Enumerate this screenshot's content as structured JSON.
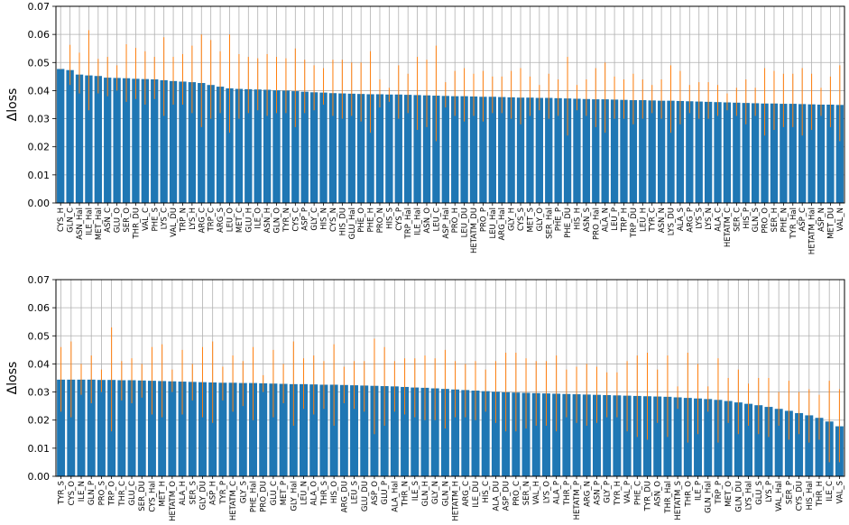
{
  "colors": {
    "bar": "#1f77b4",
    "error_bar": "#ff7f0e",
    "grid": "#b0b0b0"
  },
  "chart_data": [
    {
      "type": "bar",
      "ylabel": "Δloss",
      "xlabel": "",
      "ylim": [
        0,
        0.07
      ],
      "yticks": [
        "0.00",
        "0.01",
        "0.02",
        "0.03",
        "0.04",
        "0.05",
        "0.06",
        "0.07"
      ],
      "grid": true,
      "error_bars": true,
      "categories": [
        "CYS_H",
        "GLN_C",
        "ASN_Hal",
        "ILE_Hal",
        "MET_Hal",
        "ASN_C",
        "GLU_O",
        "SER_O",
        "THR_DU",
        "VAL_C",
        "PHE_S",
        "LYS_C",
        "VAL_DU",
        "TRP_N",
        "LYS_H",
        "ARG_C",
        "TRP_C",
        "ARG_S",
        "LEU_O",
        "MET_C",
        "GLU_H",
        "ILE_O",
        "ASN_H",
        "GLN_O",
        "TYR_N",
        "CYS_C",
        "ASP_P",
        "GLY_C",
        "HIS_N",
        "CYS_N",
        "HIS_DU",
        "GLU_Hal",
        "PHE_O",
        "PHE_H",
        "PRO_N",
        "HIS_S",
        "CYS_P",
        "TRP_Hal",
        "ILE_Hal",
        "ASN_O",
        "LEU_C",
        "ASP_Hal",
        "PRO_H",
        "LEU_DU",
        "HETATM_DU",
        "PRO_P",
        "LEU_Hal",
        "ARG_Hal",
        "GLY_H",
        "CYS_S",
        "MET_S",
        "GLY_O",
        "SER_Hal",
        "PHE_P",
        "PHE_DU",
        "HIS_H",
        "ASN_S",
        "PRO_Hal",
        "ALA_N",
        "LEU_P",
        "TRP_H",
        "TRP_DU",
        "LEU_H",
        "TYR_C",
        "ASN_N",
        "LYS_DU",
        "ALA_S",
        "ARG_P",
        "LYS_S",
        "LYS_N",
        "ALA_C",
        "HETATM_C",
        "SER_C",
        "HIS_P",
        "GLN_S",
        "PRO_O",
        "SER_H",
        "PHE_N",
        "TYR_Hal",
        "ASP_C",
        "HETATM_Hal",
        "ASP_N",
        "MET_DU",
        "VAL_N"
      ],
      "values": [
        0.0477,
        0.0473,
        0.0457,
        0.0454,
        0.0452,
        0.0446,
        0.0445,
        0.0444,
        0.0442,
        0.0441,
        0.044,
        0.0437,
        0.0434,
        0.0432,
        0.043,
        0.0427,
        0.042,
        0.0414,
        0.0408,
        0.0406,
        0.0405,
        0.0404,
        0.0403,
        0.0401,
        0.04,
        0.0398,
        0.0396,
        0.0394,
        0.0393,
        0.0391,
        0.039,
        0.0389,
        0.0388,
        0.0387,
        0.0387,
        0.0386,
        0.0386,
        0.0385,
        0.0384,
        0.0383,
        0.0382,
        0.0381,
        0.038,
        0.038,
        0.0379,
        0.0378,
        0.0378,
        0.0377,
        0.0376,
        0.0375,
        0.0375,
        0.0374,
        0.0374,
        0.0373,
        0.0372,
        0.0371,
        0.037,
        0.0369,
        0.0369,
        0.0368,
        0.0367,
        0.0366,
        0.0366,
        0.0365,
        0.0364,
        0.0364,
        0.0363,
        0.0362,
        0.0361,
        0.036,
        0.0359,
        0.0358,
        0.0357,
        0.0356,
        0.0355,
        0.0354,
        0.0354,
        0.0353,
        0.0353,
        0.0352,
        0.0351,
        0.035,
        0.035,
        0.0349
      ],
      "err_top": [
        0.0475,
        0.0563,
        0.0535,
        0.0615,
        0.0513,
        0.052,
        0.049,
        0.0565,
        0.0552,
        0.054,
        0.052,
        0.059,
        0.052,
        0.053,
        0.056,
        0.06,
        0.058,
        0.054,
        0.06,
        0.053,
        0.052,
        0.0515,
        0.053,
        0.052,
        0.0515,
        0.055,
        0.051,
        0.049,
        0.048,
        0.051,
        0.051,
        0.05,
        0.05,
        0.054,
        0.044,
        0.041,
        0.049,
        0.046,
        0.052,
        0.051,
        0.056,
        0.043,
        0.047,
        0.048,
        0.046,
        0.047,
        0.045,
        0.045,
        0.047,
        0.048,
        0.045,
        0.042,
        0.046,
        0.044,
        0.052,
        0.042,
        0.044,
        0.048,
        0.05,
        0.045,
        0.044,
        0.046,
        0.044,
        0.042,
        0.044,
        0.049,
        0.047,
        0.042,
        0.043,
        0.043,
        0.042,
        0.039,
        0.041,
        0.044,
        0.041,
        0.048,
        0.047,
        0.046,
        0.046,
        0.048,
        0.046,
        0.041,
        0.045,
        0.049
      ],
      "err_bottom": [
        0.0477,
        0.042,
        0.039,
        0.033,
        0.039,
        0.038,
        0.04,
        0.036,
        0.037,
        0.035,
        0.037,
        0.031,
        0.035,
        0.035,
        0.032,
        0.027,
        0.03,
        0.032,
        0.025,
        0.03,
        0.032,
        0.033,
        0.031,
        0.032,
        0.032,
        0.027,
        0.032,
        0.033,
        0.035,
        0.031,
        0.03,
        0.031,
        0.029,
        0.025,
        0.034,
        0.036,
        0.03,
        0.032,
        0.026,
        0.027,
        0.022,
        0.034,
        0.031,
        0.029,
        0.031,
        0.029,
        0.032,
        0.032,
        0.03,
        0.028,
        0.031,
        0.033,
        0.03,
        0.031,
        0.024,
        0.033,
        0.031,
        0.027,
        0.025,
        0.03,
        0.03,
        0.028,
        0.03,
        0.032,
        0.03,
        0.025,
        0.028,
        0.032,
        0.03,
        0.03,
        0.031,
        0.033,
        0.031,
        0.028,
        0.031,
        0.024,
        0.026,
        0.027,
        0.027,
        0.024,
        0.026,
        0.031,
        0.027,
        0.022
      ]
    },
    {
      "type": "bar",
      "ylabel": "Δloss",
      "xlabel": "",
      "ylim": [
        0,
        0.07
      ],
      "yticks": [
        "0.00",
        "0.01",
        "0.02",
        "0.03",
        "0.04",
        "0.05",
        "0.06",
        "0.07"
      ],
      "grid": true,
      "error_bars": true,
      "categories": [
        "TYR_S",
        "CYS_O",
        "ILE_N",
        "GLN_P",
        "PRO_S",
        "TRP_O",
        "THR_C",
        "GLU_C",
        "SER_DU",
        "CYS_Hal",
        "MET_H",
        "HETATM_O",
        "ALA_H",
        "SER_S",
        "GLY_DU",
        "ASP_H",
        "TYR_P",
        "HETATM_C",
        "GLY_S",
        "PHE_Hal",
        "PRO_DU",
        "GLU_C",
        "MET_P",
        "GLY_Hal",
        "LEU_N",
        "ALA_O",
        "THR_S",
        "HIS_O",
        "ARG_DU",
        "LEU_S",
        "GLU_DU",
        "ASP_O",
        "GLU_P",
        "ALA_Hal",
        "THR_N",
        "ILE_S",
        "GLN_H",
        "GLY_N",
        "GLN_N",
        "HETATM_H",
        "ARG_C",
        "ILE_DU",
        "HIS_C",
        "ALA_DU",
        "ASP_DU",
        "PRO_C",
        "SER_N",
        "VAL_H",
        "LYS_O",
        "ALA_P",
        "THR_P",
        "HETATM_P",
        "ARG_N",
        "ASN_P",
        "GLY_P",
        "TYR_H",
        "VAL_P",
        "PHE_C",
        "TYR_DU",
        "ASN_O",
        "THR_Hal",
        "HETATM_S",
        "THR_O",
        "ILE_P",
        "GLN_Hal",
        "TRP_P",
        "MET_O",
        "GLN_DU",
        "LYS_Hal",
        "GLU_S",
        "LYS_P",
        "VAL_Hal",
        "SER_P",
        "CYS_DU",
        "HIS_Hal",
        "THR_H",
        "ILE_C",
        "VAL_S"
      ],
      "values": [
        0.0344,
        0.0344,
        0.0344,
        0.0344,
        0.0343,
        0.0343,
        0.0342,
        0.0342,
        0.0341,
        0.034,
        0.0339,
        0.0338,
        0.0337,
        0.0336,
        0.0335,
        0.0334,
        0.0333,
        0.0333,
        0.0332,
        0.0332,
        0.0331,
        0.033,
        0.0329,
        0.0328,
        0.0328,
        0.0327,
        0.0326,
        0.0326,
        0.0325,
        0.0324,
        0.0323,
        0.0322,
        0.0321,
        0.032,
        0.0318,
        0.0316,
        0.0315,
        0.0313,
        0.0311,
        0.0309,
        0.0307,
        0.0305,
        0.0303,
        0.0301,
        0.0299,
        0.0298,
        0.0297,
        0.0296,
        0.0295,
        0.0294,
        0.0293,
        0.0292,
        0.0291,
        0.029,
        0.0289,
        0.0288,
        0.0287,
        0.0286,
        0.0285,
        0.0284,
        0.0283,
        0.0281,
        0.0279,
        0.0277,
        0.0275,
        0.0272,
        0.0268,
        0.0263,
        0.0258,
        0.0253,
        0.0247,
        0.024,
        0.0233,
        0.0225,
        0.0217,
        0.0208,
        0.0195,
        0.0178
      ],
      "err_top": [
        0.046,
        0.048,
        0.04,
        0.043,
        0.038,
        0.053,
        0.041,
        0.042,
        0.04,
        0.046,
        0.047,
        0.038,
        0.045,
        0.04,
        0.046,
        0.048,
        0.039,
        0.043,
        0.041,
        0.046,
        0.036,
        0.045,
        0.04,
        0.048,
        0.042,
        0.043,
        0.041,
        0.047,
        0.039,
        0.041,
        0.041,
        0.049,
        0.046,
        0.041,
        0.042,
        0.042,
        0.043,
        0.042,
        0.045,
        0.041,
        0.04,
        0.041,
        0.038,
        0.041,
        0.044,
        0.044,
        0.042,
        0.041,
        0.041,
        0.043,
        0.038,
        0.039,
        0.04,
        0.039,
        0.037,
        0.037,
        0.041,
        0.043,
        0.044,
        0.038,
        0.043,
        0.032,
        0.044,
        0.04,
        0.032,
        0.042,
        0.035,
        0.038,
        0.033,
        0.035,
        0.035,
        0.03,
        0.034,
        0.03,
        0.031,
        0.029,
        0.034,
        0.031
      ],
      "err_bottom": [
        0.023,
        0.021,
        0.029,
        0.026,
        0.03,
        0.016,
        0.027,
        0.026,
        0.028,
        0.022,
        0.021,
        0.03,
        0.022,
        0.027,
        0.021,
        0.019,
        0.027,
        0.023,
        0.025,
        0.02,
        0.03,
        0.021,
        0.026,
        0.018,
        0.024,
        0.022,
        0.024,
        0.018,
        0.026,
        0.024,
        0.023,
        0.015,
        0.018,
        0.023,
        0.022,
        0.021,
        0.02,
        0.02,
        0.017,
        0.021,
        0.021,
        0.02,
        0.023,
        0.019,
        0.016,
        0.016,
        0.017,
        0.018,
        0.018,
        0.016,
        0.021,
        0.019,
        0.018,
        0.019,
        0.021,
        0.021,
        0.016,
        0.014,
        0.013,
        0.019,
        0.014,
        0.024,
        0.012,
        0.015,
        0.023,
        0.012,
        0.019,
        0.015,
        0.018,
        0.015,
        0.014,
        0.018,
        0.013,
        0.015,
        0.012,
        0.013,
        0.005,
        0.005
      ]
    }
  ]
}
